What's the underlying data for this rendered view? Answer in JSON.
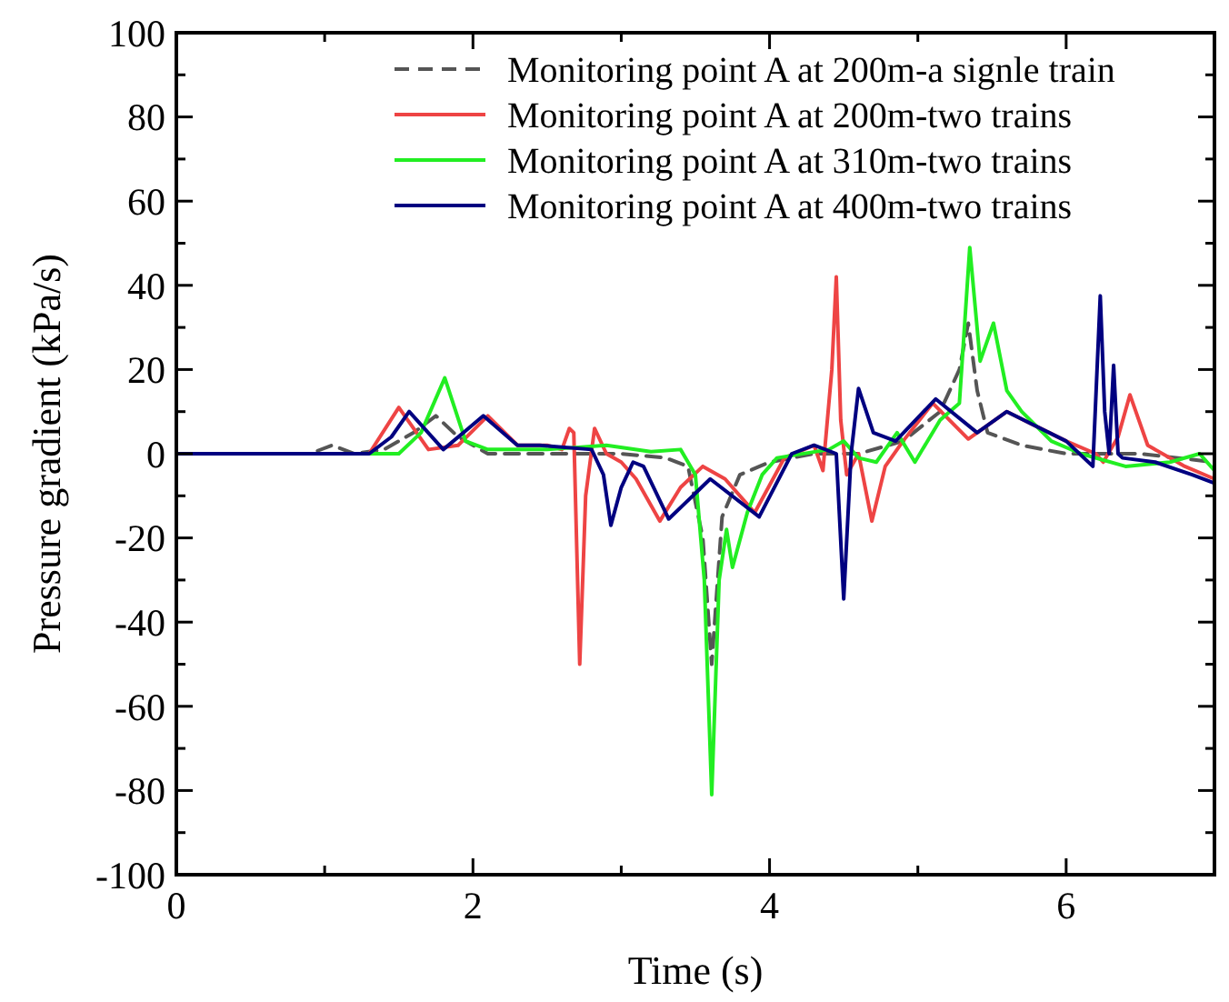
{
  "chart_data": {
    "type": "line",
    "xlabel": "Time (s)",
    "ylabel": "Pressure gradient (kPa/s)",
    "xlim": [
      0,
      7
    ],
    "ylim": [
      -100,
      100
    ],
    "xticks": [
      0,
      {
        "value": 1,
        "label": null
      },
      2,
      {
        "value": 3,
        "label": null
      },
      4,
      {
        "value": 5,
        "label": null
      },
      6,
      {
        "value": 7,
        "label": null
      }
    ],
    "yticks": [
      -100,
      {
        "value": -90,
        "label": null
      },
      -80,
      {
        "value": -70,
        "label": null
      },
      -60,
      {
        "value": -50,
        "label": null
      },
      -40,
      {
        "value": -30,
        "label": null
      },
      -20,
      {
        "value": -10,
        "label": null
      },
      0,
      {
        "value": 10,
        "label": null
      },
      20,
      {
        "value": 30,
        "label": null
      },
      40,
      {
        "value": 50,
        "label": null
      },
      60,
      {
        "value": 70,
        "label": null
      },
      80,
      {
        "value": 90,
        "label": null
      },
      100
    ],
    "grid": false,
    "legend": "top",
    "marker": "none",
    "series": [
      {
        "name": "Monitoring point A at 200m-a signle train",
        "color": "#555555",
        "line_style": "dashed",
        "x": [
          0,
          0.9,
          1.05,
          1.2,
          1.4,
          1.6,
          1.75,
          1.9,
          2.1,
          2.5,
          3.0,
          3.3,
          3.45,
          3.55,
          3.61,
          3.68,
          3.8,
          4.0,
          4.3,
          4.6,
          4.9,
          5.15,
          5.28,
          5.34,
          5.4,
          5.47,
          5.7,
          6.0,
          6.5,
          7.0
        ],
        "values": [
          0,
          0,
          2,
          0,
          1,
          5,
          9,
          4,
          0,
          0,
          0,
          -1,
          -3,
          -20,
          -50,
          -15,
          -5,
          -2,
          0,
          0,
          3,
          10,
          20,
          31,
          15,
          5,
          2,
          0,
          0,
          -2
        ]
      },
      {
        "name": "Monitoring point A at 200m-two trains",
        "color": "#ee4444",
        "line_style": "solid",
        "x": [
          0,
          1.3,
          1.5,
          1.7,
          1.9,
          2.1,
          2.3,
          2.5,
          2.6,
          2.65,
          2.68,
          2.72,
          2.76,
          2.82,
          2.9,
          3.0,
          3.1,
          3.26,
          3.4,
          3.55,
          3.7,
          3.9,
          4.1,
          4.3,
          4.36,
          4.42,
          4.45,
          4.48,
          4.52,
          4.6,
          4.69,
          4.78,
          4.9,
          5.1,
          5.34,
          5.6,
          6.0,
          6.2,
          6.25,
          6.35,
          6.43,
          6.55,
          6.8,
          7.0
        ],
        "values": [
          0,
          0,
          11,
          1,
          2,
          9,
          2,
          2,
          1,
          6,
          5,
          -50,
          -10,
          6,
          0,
          -2,
          -6,
          -16,
          -8,
          -3,
          -6,
          -14,
          -1,
          2,
          -4,
          20,
          42,
          8,
          -5,
          0,
          -16,
          -3,
          3,
          12,
          3.5,
          10,
          3,
          0,
          -2,
          4,
          14,
          2,
          -3,
          -6
        ]
      },
      {
        "name": "Monitoring point A at 310m-two trains",
        "color": "#22ee22",
        "line_style": "solid",
        "x": [
          0,
          1.5,
          1.65,
          1.81,
          1.95,
          2.1,
          2.5,
          2.9,
          3.2,
          3.4,
          3.5,
          3.56,
          3.61,
          3.66,
          3.71,
          3.75,
          3.85,
          3.95,
          4.05,
          4.4,
          4.5,
          4.6,
          4.72,
          4.86,
          4.98,
          5.15,
          5.28,
          5.35,
          5.42,
          5.51,
          5.6,
          5.7,
          5.9,
          6.1,
          6.4,
          6.7,
          6.9,
          7.0
        ],
        "values": [
          0,
          0,
          5,
          18,
          3,
          1,
          1,
          2,
          0.5,
          1,
          -5,
          -30,
          -81,
          -30,
          -18,
          -27,
          -14,
          -5,
          -1,
          1,
          3,
          -1,
          -2,
          5,
          -2,
          8,
          12,
          49,
          22,
          31,
          15,
          10,
          3,
          0,
          -3,
          -2,
          0,
          -4
        ]
      },
      {
        "name": "Monitoring point A at 400m-two trains",
        "color": "#000080",
        "line_style": "solid",
        "x": [
          0,
          1.3,
          1.45,
          1.57,
          1.8,
          2.07,
          2.3,
          2.45,
          2.8,
          2.88,
          2.93,
          3.0,
          3.08,
          3.15,
          3.32,
          3.6,
          3.93,
          4.15,
          4.3,
          4.45,
          4.5,
          4.55,
          4.6,
          4.7,
          4.85,
          5.12,
          5.4,
          5.6,
          6.0,
          6.18,
          6.23,
          6.26,
          6.29,
          6.32,
          6.35,
          6.38,
          6.6,
          6.85,
          7.0
        ],
        "values": [
          0,
          0,
          4,
          10,
          1,
          9,
          2,
          2,
          1,
          -5,
          -17,
          -8,
          -2,
          -3,
          -15.5,
          -6,
          -15,
          0,
          2,
          0,
          -34.5,
          0,
          15.5,
          5,
          3,
          13,
          5,
          10,
          3,
          -3,
          37.5,
          10,
          0,
          21,
          0,
          -1,
          -2,
          -5,
          -7
        ]
      }
    ]
  }
}
